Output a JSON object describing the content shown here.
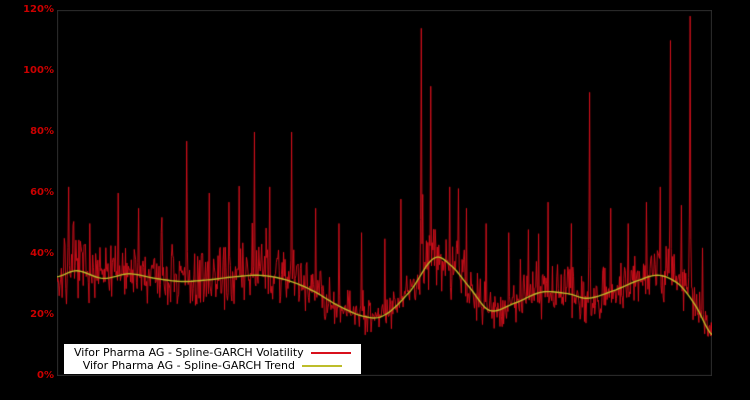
{
  "chart_data": {
    "type": "line",
    "title": "",
    "xlabel": "",
    "ylabel": "",
    "background_color": "#000000",
    "axis_label_color": "#cc0000",
    "grid": false,
    "legend_position": "bottom-left",
    "ylim": [
      0,
      120
    ],
    "ytick_labels": [
      "0%",
      "20%",
      "40%",
      "60%",
      "80%",
      "100%",
      "120%"
    ],
    "series": [
      {
        "name": "Vifor Pharma AG - Spline-GARCH Volatility",
        "color": "#d8101c",
        "style": "noisy-line"
      },
      {
        "name": "Vifor Pharma AG - Spline-GARCH Trend",
        "color": "#bdbd2a",
        "style": "smooth-line"
      }
    ],
    "trend_points_pct": [
      [
        0.0,
        32.5
      ],
      [
        0.03,
        34.5
      ],
      [
        0.07,
        32.0
      ],
      [
        0.11,
        33.5
      ],
      [
        0.15,
        32.0
      ],
      [
        0.19,
        31.0
      ],
      [
        0.23,
        31.5
      ],
      [
        0.27,
        32.5
      ],
      [
        0.31,
        33.0
      ],
      [
        0.35,
        31.5
      ],
      [
        0.39,
        28.0
      ],
      [
        0.43,
        23.0
      ],
      [
        0.47,
        19.5
      ],
      [
        0.5,
        20.0
      ],
      [
        0.54,
        28.0
      ],
      [
        0.575,
        38.5
      ],
      [
        0.6,
        36.5
      ],
      [
        0.63,
        29.0
      ],
      [
        0.66,
        21.5
      ],
      [
        0.7,
        24.0
      ],
      [
        0.74,
        27.5
      ],
      [
        0.78,
        27.0
      ],
      [
        0.81,
        25.5
      ],
      [
        0.85,
        28.0
      ],
      [
        0.89,
        31.5
      ],
      [
        0.92,
        33.0
      ],
      [
        0.95,
        30.0
      ],
      [
        0.975,
        23.0
      ],
      [
        1.0,
        13.5
      ]
    ],
    "volatility_model": {
      "points": 900,
      "seed": 7,
      "band_low": 0.66,
      "band_high": 1.38,
      "min_pct": 13,
      "max_pct": 119,
      "spikes_pct": [
        [
          0.018,
          62
        ],
        [
          0.05,
          50
        ],
        [
          0.093,
          60
        ],
        [
          0.125,
          55
        ],
        [
          0.16,
          52
        ],
        [
          0.198,
          77
        ],
        [
          0.232,
          60
        ],
        [
          0.262,
          57
        ],
        [
          0.302,
          80
        ],
        [
          0.325,
          62
        ],
        [
          0.358,
          80
        ],
        [
          0.395,
          55
        ],
        [
          0.43,
          50
        ],
        [
          0.465,
          47
        ],
        [
          0.5,
          45
        ],
        [
          0.525,
          58
        ],
        [
          0.556,
          114
        ],
        [
          0.571,
          95
        ],
        [
          0.6,
          62
        ],
        [
          0.625,
          55
        ],
        [
          0.655,
          50
        ],
        [
          0.69,
          47
        ],
        [
          0.72,
          48
        ],
        [
          0.75,
          57
        ],
        [
          0.785,
          50
        ],
        [
          0.813,
          93
        ],
        [
          0.845,
          55
        ],
        [
          0.872,
          50
        ],
        [
          0.9,
          57
        ],
        [
          0.921,
          62
        ],
        [
          0.937,
          110
        ],
        [
          0.953,
          56
        ],
        [
          0.967,
          118
        ],
        [
          0.985,
          42
        ]
      ]
    }
  }
}
